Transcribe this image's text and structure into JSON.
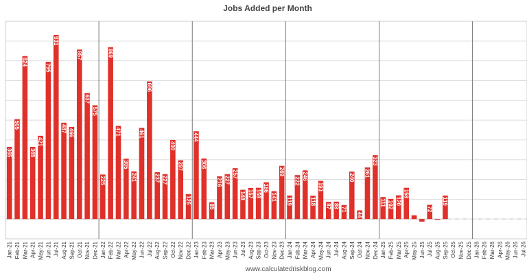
{
  "chart_data": {
    "type": "bar",
    "title": "Jobs Added per Month",
    "source": "www.calculatedriskblog.com",
    "xlabel": "",
    "ylabel": "",
    "ylim": [
      -100,
      1000
    ],
    "grid": true,
    "bar_color": "#e0302a",
    "categories": [
      "Jan-21",
      "Feb-21",
      "Mar-21",
      "Apr-21",
      "May-21",
      "Jun-21",
      "Jul-21",
      "Aug-21",
      "Sep-21",
      "Oct-21",
      "Nov-21",
      "Dec-21",
      "Jan-22",
      "Feb-22",
      "Mar-22",
      "Apr-22",
      "May-22",
      "Jun-22",
      "Jul-22",
      "Aug-22",
      "Sep-22",
      "Oct-22",
      "Nov-22",
      "Dec-22",
      "Jan-23",
      "Feb-23",
      "Mar-23",
      "Apr-23",
      "May-23",
      "Jun-23",
      "Jul-23",
      "Aug-23",
      "Sep-23",
      "Oct-23",
      "Nov-23",
      "Dec-23",
      "Jan-24",
      "Feb-24",
      "Mar-24",
      "Apr-24",
      "May-24",
      "Jun-24",
      "Jul-24",
      "Aug-24",
      "Sep-24",
      "Oct-24",
      "Nov-24",
      "Dec-24",
      "Jan-25",
      "Feb-25",
      "Mar-25",
      "Apr-25",
      "May-25",
      "Jun-25",
      "Jul-25",
      "Aug-25",
      "Sep-25",
      "Oct-25",
      "Nov-25",
      "Dec-25",
      "Jan-26",
      "Feb-26",
      "Mar-26",
      "Apr-26",
      "May-26",
      "Jun-26",
      "Jul-26"
    ],
    "values": [
      365,
      505,
      824,
      365,
      421,
      795,
      931,
      487,
      466,
      857,
      637,
      575,
      225,
      869,
      471,
      305,
      241,
      461,
      696,
      237,
      227,
      400,
      297,
      126,
      444,
      306,
      85,
      216,
      227,
      257,
      148,
      157,
      158,
      186,
      141,
      269,
      119,
      222,
      246,
      118,
      193,
      87,
      88,
      71,
      240,
      44,
      261,
      323,
      111,
      102,
      120,
      158,
      19,
      -13,
      72,
      -4,
      119,
      null,
      null,
      null,
      null,
      null,
      null,
      null,
      null,
      null,
      null
    ],
    "data_labels": [
      "365",
      "505",
      "824",
      "365",
      "421",
      "795",
      "931",
      "487",
      "466",
      "857",
      "637",
      "575",
      "225",
      "869",
      "471",
      "305",
      "241",
      "461",
      "696",
      "237",
      "227",
      "400",
      "297",
      "126",
      "444",
      "306",
      "85",
      "216",
      "227",
      "257",
      "148",
      "157",
      "158",
      "186",
      "141",
      "269",
      "119",
      "222",
      "246",
      "118",
      "193",
      "87",
      "88",
      "71",
      "240",
      "44",
      "261",
      "323",
      "111",
      "102",
      "120",
      "158",
      "",
      "",
      "72",
      "",
      "119",
      "",
      "",
      "",
      "",
      "",
      "",
      "",
      "",
      "",
      ""
    ]
  }
}
